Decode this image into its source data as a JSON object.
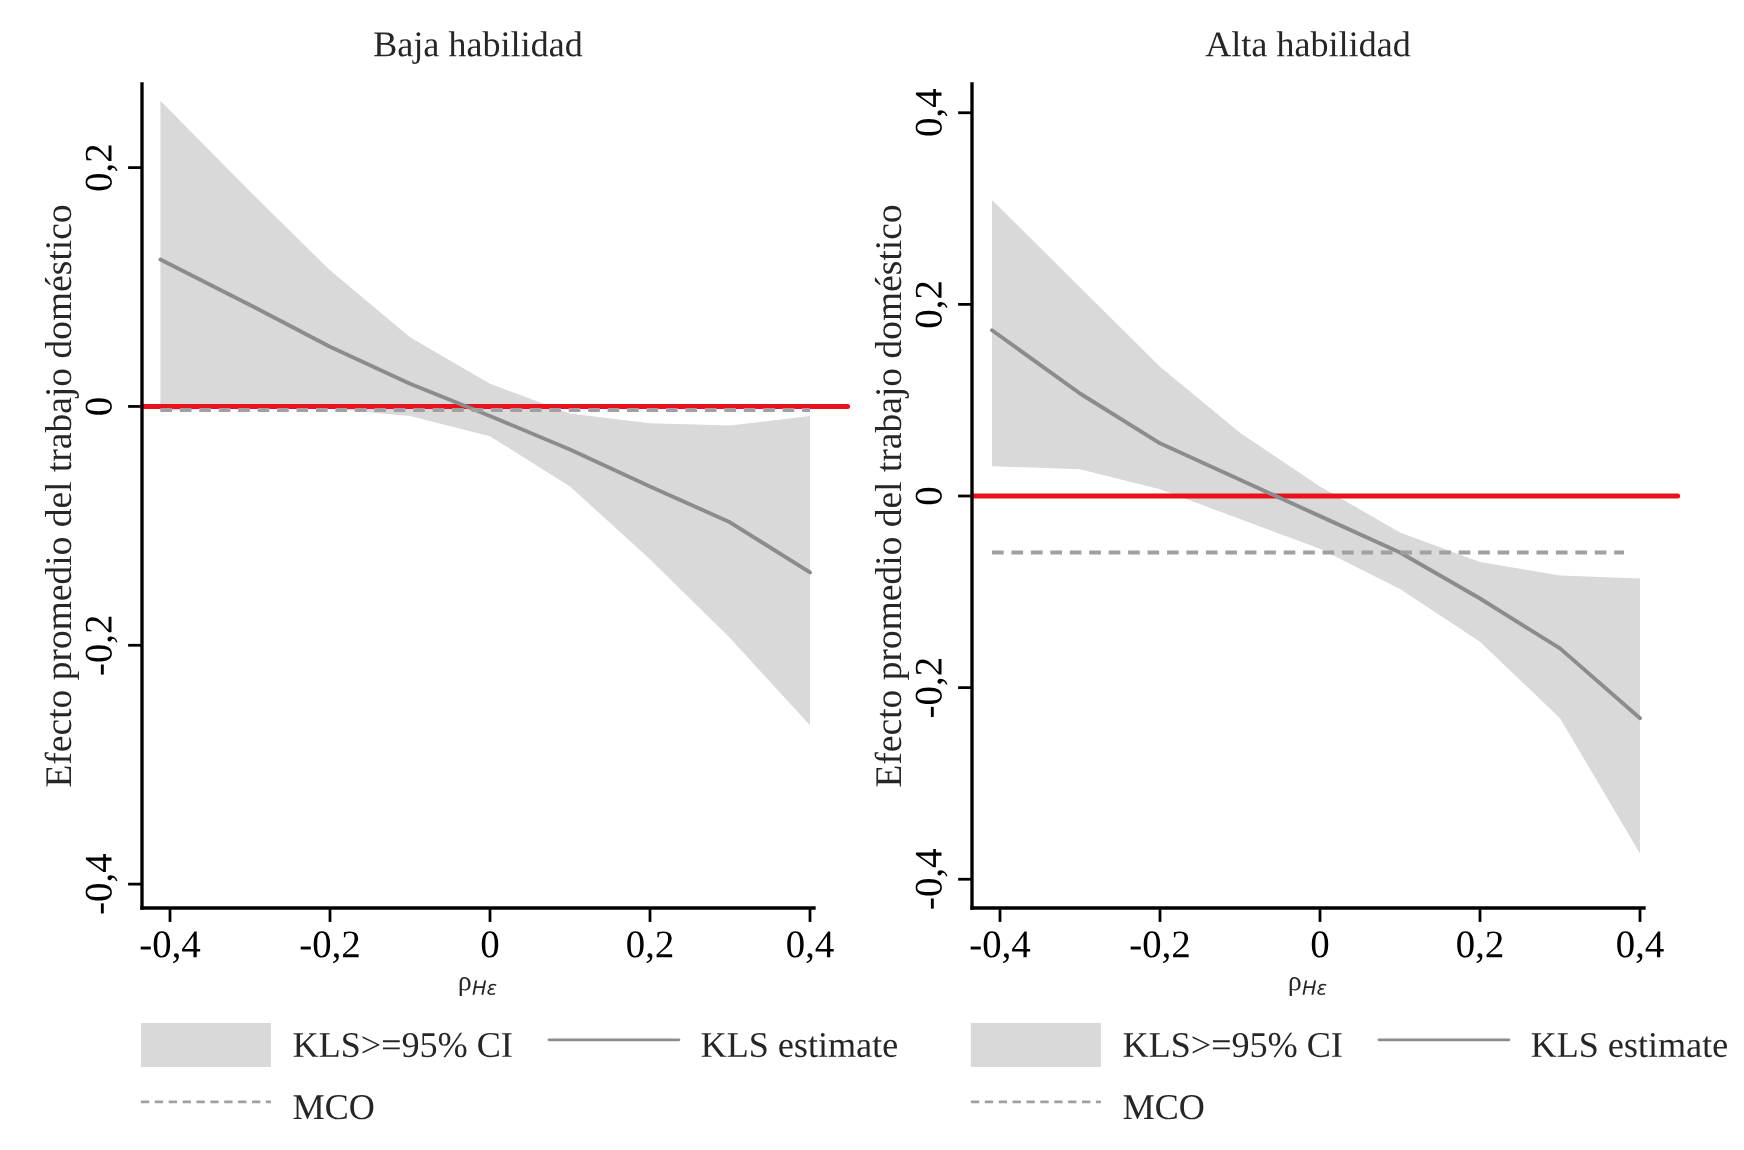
{
  "chart_data": [
    {
      "type": "line",
      "title": "Baja habilidad",
      "xlabel": "ρ$_{Hε}$",
      "ylabel": "Efecto promedio del trabajo doméstico",
      "x": [
        -0.412,
        -0.3,
        -0.2,
        -0.1,
        0,
        0.1,
        0.2,
        0.3,
        0.4
      ],
      "series": [
        {
          "name": "KLS estimate",
          "type": "line",
          "color": "#8c8c8c",
          "values": [
            0.123,
            0.085,
            0.05,
            0.019,
            -0.008,
            -0.036,
            -0.067,
            -0.097,
            -0.139
          ],
          "lower": [
            -0.004,
            0,
            -0.002,
            -0.008,
            -0.025,
            -0.067,
            -0.128,
            -0.194,
            -0.267
          ],
          "upper": [
            0.256,
            0.18,
            0.114,
            0.058,
            0.019,
            -0.006,
            -0.014,
            -0.016,
            -0.008
          ]
        },
        {
          "name": "MCO",
          "line_style": "dashed",
          "color": "#a0a0a0",
          "x": [
            -0.412,
            0.4
          ],
          "values": [
            -0.003,
            -0.003
          ]
        }
      ],
      "ref_lines": [
        {
          "axis": "y",
          "value": 0,
          "color": "#e8121c"
        }
      ],
      "annotations": [
        "KLS>=95% CI"
      ],
      "xlim": [
        -0.435,
        0.405
      ],
      "ylim": [
        -0.42,
        0.27
      ],
      "xticks": [
        {
          "value": -0.4,
          "label": "-0,4"
        },
        {
          "value": -0.2,
          "label": "-0,2"
        },
        0,
        {
          "value": 0.2,
          "label": "0,2"
        },
        {
          "value": 0.4,
          "label": "0,4"
        }
      ],
      "yticks": [
        {
          "value": -0.4,
          "label": "-0,4"
        },
        {
          "value": -0.2,
          "label": "-0,2"
        },
        0,
        {
          "value": 0.2,
          "label": "0,2"
        }
      ],
      "legend": "bottom"
    },
    {
      "type": "line",
      "title": "Alta habilidad",
      "xlabel": "ρ$_{Hε}$",
      "ylabel": "Efecto promedio del trabajo doméstico",
      "x": [
        -0.41,
        -0.3,
        -0.2,
        -0.1,
        0,
        0.1,
        0.2,
        0.3,
        0.4
      ],
      "series": [
        {
          "name": "KLS estimate",
          "type": "line",
          "color": "#8c8c8c",
          "values": [
            0.173,
            0.107,
            0.055,
            0.017,
            -0.021,
            -0.059,
            -0.107,
            -0.159,
            -0.232
          ],
          "lower": [
            0.031,
            0.028,
            0.007,
            -0.024,
            -0.055,
            -0.097,
            -0.152,
            -0.232,
            -0.373
          ],
          "upper": [
            0.309,
            0.218,
            0.135,
            0.066,
            0.01,
            -0.038,
            -0.069,
            -0.083,
            -0.086
          ]
        },
        {
          "name": "MCO",
          "line_style": "dashed",
          "color": "#a0a0a0",
          "x": [
            -0.41,
            0.38
          ],
          "values": [
            -0.059,
            -0.059
          ]
        }
      ],
      "ref_lines": [
        {
          "axis": "y",
          "value": 0,
          "color": "#e8121c"
        }
      ],
      "annotations": [
        "KLS>=95% CI"
      ],
      "xlim": [
        -0.435,
        0.405
      ],
      "ylim": [
        -0.43,
        0.43
      ],
      "xticks": [
        {
          "value": -0.4,
          "label": "-0,4"
        },
        {
          "value": -0.2,
          "label": "-0,2"
        },
        0,
        {
          "value": 0.2,
          "label": "0,2"
        },
        {
          "value": 0.4,
          "label": "0,4"
        }
      ],
      "yticks": [
        {
          "value": -0.4,
          "label": "-0,4"
        },
        {
          "value": -0.2,
          "label": "-0,2"
        },
        0,
        {
          "value": 0.2,
          "label": "0,2"
        },
        {
          "value": 0.4,
          "label": "0,4"
        }
      ],
      "legend": "bottom"
    }
  ]
}
